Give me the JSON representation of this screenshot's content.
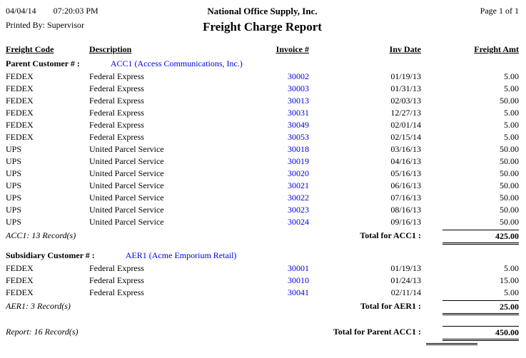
{
  "header": {
    "date": "04/04/14",
    "time": "07:20:03 PM",
    "company": "National Office Supply, Inc.",
    "page_label": "Page 1 of 1",
    "printed_by": "Printed By: Supervisor",
    "title": "Freight Charge Report"
  },
  "columns": {
    "freight_code": "Freight Code",
    "description": "Description",
    "invoice": "Invoice #",
    "inv_date": "Inv Date",
    "freight_amt": "Freight Amt"
  },
  "groups": [
    {
      "label": "Parent Customer # :",
      "customer": "ACC1 (Access Communications, Inc.)",
      "rows": [
        {
          "code": "FEDEX",
          "desc": "Federal Express",
          "invoice": "30002",
          "date": "01/19/13",
          "amount": "5.00"
        },
        {
          "code": "FEDEX",
          "desc": "Federal Express",
          "invoice": "30003",
          "date": "01/31/13",
          "amount": "5.00"
        },
        {
          "code": "FEDEX",
          "desc": "Federal Express",
          "invoice": "30013",
          "date": "02/03/13",
          "amount": "50.00"
        },
        {
          "code": "FEDEX",
          "desc": "Federal Express",
          "invoice": "30031",
          "date": "12/27/13",
          "amount": "5.00"
        },
        {
          "code": "FEDEX",
          "desc": "Federal Express",
          "invoice": "30049",
          "date": "02/01/14",
          "amount": "5.00"
        },
        {
          "code": "FEDEX",
          "desc": "Federal Express",
          "invoice": "30053",
          "date": "02/15/14",
          "amount": "5.00"
        },
        {
          "code": "UPS",
          "desc": "United Parcel Service",
          "invoice": "30018",
          "date": "03/16/13",
          "amount": "50.00"
        },
        {
          "code": "UPS",
          "desc": "United Parcel Service",
          "invoice": "30019",
          "date": "04/16/13",
          "amount": "50.00"
        },
        {
          "code": "UPS",
          "desc": "United Parcel Service",
          "invoice": "30020",
          "date": "05/16/13",
          "amount": "50.00"
        },
        {
          "code": "UPS",
          "desc": "United Parcel Service",
          "invoice": "30021",
          "date": "06/16/13",
          "amount": "50.00"
        },
        {
          "code": "UPS",
          "desc": "United Parcel Service",
          "invoice": "30022",
          "date": "07/16/13",
          "amount": "50.00"
        },
        {
          "code": "UPS",
          "desc": "United Parcel Service",
          "invoice": "30023",
          "date": "08/16/13",
          "amount": "50.00"
        },
        {
          "code": "UPS",
          "desc": "United Parcel Service",
          "invoice": "30024",
          "date": "09/16/13",
          "amount": "50.00"
        }
      ],
      "record_count": "ACC1: 13 Record(s)",
      "total_label": "Total for ACC1 :",
      "total": "425.00"
    },
    {
      "label": "Subsidiary Customer # :",
      "customer": "AER1 (Acme Emporium Retail)",
      "rows": [
        {
          "code": "FEDEX",
          "desc": "Federal Express",
          "invoice": "30001",
          "date": "01/19/13",
          "amount": "5.00"
        },
        {
          "code": "FEDEX",
          "desc": "Federal Express",
          "invoice": "30010",
          "date": "01/24/13",
          "amount": "15.00"
        },
        {
          "code": "FEDEX",
          "desc": "Federal Express",
          "invoice": "30041",
          "date": "02/11/14",
          "amount": "5.00"
        }
      ],
      "record_count": "AER1: 3 Record(s)",
      "total_label": "Total for AER1 :",
      "total": "25.00"
    }
  ],
  "report_footer": {
    "record_count": "Report: 16 Record(s)",
    "total_label": "Total for Parent ACC1 :",
    "total": "450.00"
  },
  "colors": {
    "link_blue": "#0000EE"
  }
}
